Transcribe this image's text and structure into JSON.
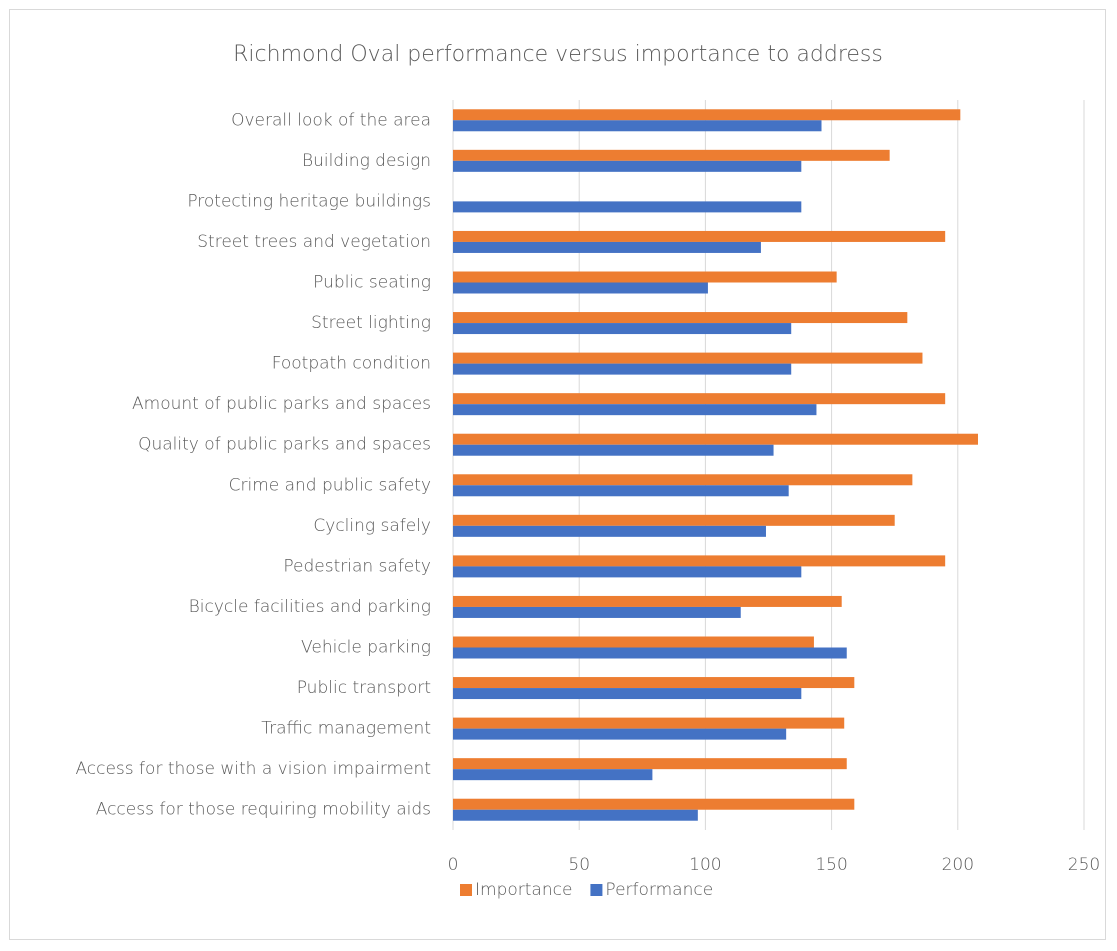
{
  "chart_data": {
    "type": "bar",
    "orientation": "horizontal",
    "title": "Richmond Oval performance versus importance to address",
    "categories": [
      "Overall look of the area",
      "Building design",
      "Protecting heritage buildings",
      "Street trees and vegetation",
      "Public seating ",
      "Street lighting",
      "Footpath condition",
      "Amount of public parks and spaces",
      "Quality of public parks and spaces",
      "Crime and public safety",
      "Cycling safely",
      "Pedestrian safety",
      "Bicycle facilities and parking",
      "Vehicle parking",
      "Public transport",
      "Traffic management",
      "Access for those with a vision impairment",
      "Access for those requiring mobility aids"
    ],
    "series": [
      {
        "name": "Importance",
        "color": "#ed7d31",
        "values": [
          201,
          173,
          null,
          195,
          152,
          180,
          186,
          195,
          208,
          182,
          175,
          195,
          154,
          143,
          159,
          155,
          156,
          159
        ]
      },
      {
        "name": "Performance",
        "color": "#4472c4",
        "values": [
          146,
          138,
          138,
          122,
          101,
          134,
          134,
          144,
          127,
          133,
          124,
          138,
          114,
          156,
          138,
          132,
          79,
          97
        ]
      }
    ],
    "xlim": [
      0,
      250
    ],
    "xticks": [
      0,
      50,
      100,
      150,
      200,
      250
    ],
    "grid": true,
    "legend": "bottom"
  }
}
